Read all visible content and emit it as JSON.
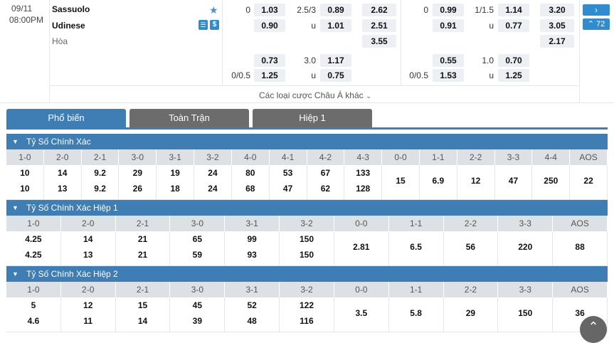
{
  "match": {
    "date": "09/11",
    "time": "08:00PM",
    "home": "Sassuolo",
    "away": "Udinese",
    "draw_label": "Hòa",
    "more_bets_label": "Các loại cược Châu Á khác",
    "more_count": "72"
  },
  "odds": {
    "ft_hdp": {
      "line": "0",
      "home": "1.03",
      "away": "0.90"
    },
    "ft_ou": {
      "line": "2.5/3",
      "over": "0.89",
      "under_label": "u",
      "under": "1.01"
    },
    "ft_1x2": {
      "home": "2.62",
      "away": "2.51",
      "draw": "3.55"
    },
    "ft_hdp2": {
      "line": "0/0.5",
      "home": "0.73",
      "away": "1.25"
    },
    "ft_ou2": {
      "line": "3.0",
      "over": "1.17",
      "under_label": "u",
      "under": "0.75"
    },
    "h1_hdp": {
      "line": "0",
      "home": "0.99",
      "away": "0.91"
    },
    "h1_ou": {
      "line": "1/1.5",
      "over": "1.14",
      "under_label": "u",
      "under": "0.77"
    },
    "h1_1x2": {
      "home": "3.20",
      "away": "3.05",
      "draw": "2.17"
    },
    "h1_hdp2": {
      "line": "0/0.5",
      "home": "0.55",
      "away": "1.53"
    },
    "h1_ou2": {
      "line": "1.0",
      "over": "0.70",
      "under_label": "u",
      "under": "1.25"
    }
  },
  "tabs": [
    "Phổ biến",
    "Toàn Trận",
    "Hiệp 1"
  ],
  "sections": [
    {
      "title": "Tỷ Số Chính Xác",
      "pairs": [
        {
          "score": "1-0",
          "a": "10",
          "b": "10"
        },
        {
          "score": "2-0",
          "a": "14",
          "b": "13"
        },
        {
          "score": "2-1",
          "a": "9.2",
          "b": "9.2"
        },
        {
          "score": "3-0",
          "a": "29",
          "b": "26"
        },
        {
          "score": "3-1",
          "a": "19",
          "b": "18"
        },
        {
          "score": "3-2",
          "a": "24",
          "b": "24"
        },
        {
          "score": "4-0",
          "a": "80",
          "b": "68"
        },
        {
          "score": "4-1",
          "a": "53",
          "b": "47"
        },
        {
          "score": "4-2",
          "a": "67",
          "b": "62"
        },
        {
          "score": "4-3",
          "a": "133",
          "b": "128"
        }
      ],
      "singles": [
        {
          "score": "0-0",
          "v": "15"
        },
        {
          "score": "1-1",
          "v": "6.9"
        },
        {
          "score": "2-2",
          "v": "12"
        },
        {
          "score": "3-3",
          "v": "47"
        },
        {
          "score": "4-4",
          "v": "250"
        },
        {
          "score": "AOS",
          "v": "22"
        }
      ]
    },
    {
      "title": "Tỷ Số Chính Xác Hiệp 1",
      "pairs": [
        {
          "score": "1-0",
          "a": "4.25",
          "b": "4.25"
        },
        {
          "score": "2-0",
          "a": "14",
          "b": "13"
        },
        {
          "score": "2-1",
          "a": "21",
          "b": "21"
        },
        {
          "score": "3-0",
          "a": "65",
          "b": "59"
        },
        {
          "score": "3-1",
          "a": "99",
          "b": "93"
        },
        {
          "score": "3-2",
          "a": "150",
          "b": "150"
        }
      ],
      "singles": [
        {
          "score": "0-0",
          "v": "2.81"
        },
        {
          "score": "1-1",
          "v": "6.5"
        },
        {
          "score": "2-2",
          "v": "56"
        },
        {
          "score": "3-3",
          "v": "220"
        },
        {
          "score": "AOS",
          "v": "88"
        }
      ]
    },
    {
      "title": "Tỷ Số Chính Xác Hiệp 2",
      "pairs": [
        {
          "score": "1-0",
          "a": "5",
          "b": "4.6"
        },
        {
          "score": "2-0",
          "a": "12",
          "b": "11"
        },
        {
          "score": "2-1",
          "a": "15",
          "b": "14"
        },
        {
          "score": "3-0",
          "a": "45",
          "b": "39"
        },
        {
          "score": "3-1",
          "a": "52",
          "b": "48"
        },
        {
          "score": "3-2",
          "a": "122",
          "b": "116"
        }
      ],
      "singles": [
        {
          "score": "0-0",
          "v": "3.5"
        },
        {
          "score": "1-1",
          "v": "5.8"
        },
        {
          "score": "2-2",
          "v": "29"
        },
        {
          "score": "3-3",
          "v": "150"
        },
        {
          "score": "AOS",
          "v": "36"
        }
      ]
    }
  ],
  "colors": {
    "section_header": "#3f7db5",
    "tab_active": "#3f7db5",
    "tab_inactive": "#6c6c6c",
    "accent": "#2e8ccf"
  }
}
